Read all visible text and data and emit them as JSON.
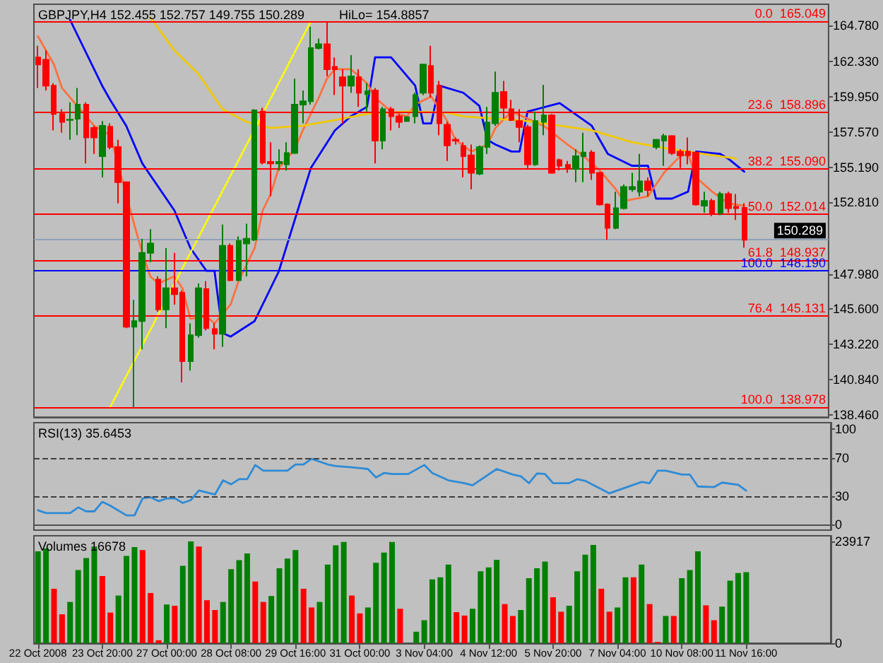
{
  "chart_data": [
    {
      "type": "candlestick",
      "title": "GBPJPY,H4 152.455 152.757 149.755 150.289",
      "annotations": [
        "HiLo= 154.8857"
      ],
      "categories": [
        null,
        null,
        null,
        null,
        null,
        null,
        null,
        null,
        null,
        null,
        null,
        null,
        null,
        null,
        null,
        null,
        null,
        null,
        null,
        null,
        null,
        null,
        null,
        null,
        null,
        null,
        null,
        null,
        null,
        null,
        null,
        null,
        null,
        null,
        null,
        null,
        null,
        null,
        null,
        null,
        null,
        null,
        null,
        null,
        null,
        null,
        null,
        null,
        null,
        null,
        null,
        null,
        null,
        null,
        null,
        null,
        null,
        null,
        null,
        null,
        null,
        null,
        null,
        null,
        null,
        null,
        null,
        null,
        null,
        null,
        null,
        null,
        null,
        null,
        null,
        null,
        null,
        null,
        null,
        null,
        null,
        null,
        null,
        null,
        null,
        null,
        null,
        null,
        null,
        null,
        null,
        null,
        null,
        null,
        null,
        null,
        null,
        null,
        null
      ],
      "ohlc": [
        [
          162.61,
          163.4,
          160.54,
          162.13
        ],
        [
          162.45,
          163.08,
          160.38,
          160.7
        ],
        [
          160.7,
          160.86,
          157.68,
          158.79
        ],
        [
          158.79,
          159.11,
          157.52,
          158.25
        ],
        [
          158.38,
          159.58,
          157.04,
          158.4
        ],
        [
          158.47,
          160.54,
          157.36,
          159.42
        ],
        [
          159.42,
          159.58,
          155.45,
          157.2
        ],
        [
          157.84,
          157.99,
          156.09,
          157.2
        ],
        [
          155.93,
          158.31,
          154.5,
          157.99
        ],
        [
          157.93,
          158.15,
          156.4,
          156.56
        ],
        [
          156.56,
          157.04,
          152.75,
          154.18
        ],
        [
          154.18,
          154.18,
          144.32,
          144.42
        ],
        [
          144.42,
          146.23,
          138.978,
          144.8
        ],
        [
          144.8,
          150.36,
          142.89,
          149.41
        ],
        [
          149.41,
          151.0,
          148.77,
          150.04
        ],
        [
          147.6,
          147.82,
          145.43,
          145.59
        ],
        [
          145.59,
          149.73,
          144.32,
          147.02
        ],
        [
          147.02,
          149.41,
          145.91,
          146.61
        ],
        [
          146.71,
          146.86,
          140.66,
          142.09
        ],
        [
          142.09,
          144.64,
          141.46,
          143.84
        ],
        [
          143.84,
          147.34,
          143.68,
          147.02
        ],
        [
          146.96,
          147.5,
          144.16,
          144.32
        ],
        [
          144.26,
          144.64,
          142.89,
          143.94
        ],
        [
          143.94,
          151.32,
          143.05,
          149.88
        ],
        [
          149.88,
          150.04,
          147.5,
          147.56
        ],
        [
          147.56,
          150.52,
          147.5,
          150.2
        ],
        [
          150.04,
          151.38,
          147.82,
          150.36
        ],
        [
          150.3,
          159.11,
          150.2,
          159.04
        ],
        [
          158.95,
          159.2,
          155.39,
          155.51
        ],
        [
          155.55,
          156.88,
          153.22,
          155.45
        ],
        [
          155.45,
          156.4,
          154.97,
          155.55
        ],
        [
          155.39,
          156.88,
          154.97,
          156.15
        ],
        [
          156.15,
          161.17,
          156.09,
          159.42
        ],
        [
          159.42,
          160.38,
          158.15,
          159.65
        ],
        [
          159.65,
          164.67,
          159.42,
          163.24
        ],
        [
          163.24,
          163.88,
          163.14,
          163.5
        ],
        [
          163.5,
          165.049,
          161.33,
          161.81
        ],
        [
          161.97,
          162.61,
          160.06,
          161.81
        ],
        [
          161.27,
          161.81,
          158.15,
          160.7
        ],
        [
          160.7,
          162.76,
          160.22,
          161.33
        ],
        [
          161.27,
          161.81,
          159.27,
          160.22
        ],
        [
          160.12,
          160.86,
          158.95,
          160.32
        ],
        [
          160.38,
          160.54,
          155.45,
          156.98
        ],
        [
          156.98,
          159.27,
          156.4,
          159.11
        ],
        [
          159.11,
          159.27,
          157.68,
          158.63
        ],
        [
          158.63,
          158.79,
          157.84,
          158.25
        ],
        [
          158.31,
          158.63,
          158.25,
          158.57
        ],
        [
          158.63,
          160.22,
          158.15,
          160.06
        ],
        [
          160.22,
          162.13,
          160.06,
          162.13
        ],
        [
          162.03,
          163.4,
          159.9,
          160.22
        ],
        [
          160.7,
          161.02,
          157.36,
          158.15
        ],
        [
          158.06,
          158.25,
          155.61,
          156.66
        ],
        [
          157.04,
          157.2,
          156.72,
          156.98
        ],
        [
          156.63,
          156.88,
          154.5,
          155.93
        ],
        [
          155.99,
          156.72,
          153.7,
          154.81
        ],
        [
          154.75,
          156.66,
          154.66,
          156.56
        ],
        [
          156.56,
          159.27,
          156.09,
          158.22
        ],
        [
          158.15,
          161.65,
          157.99,
          160.22
        ],
        [
          160.28,
          161.02,
          158.47,
          159.2
        ],
        [
          159.11,
          159.74,
          158.31,
          158.38
        ],
        [
          158.31,
          159.11,
          156.88,
          157.9
        ],
        [
          157.9,
          158.06,
          155.13,
          155.39
        ],
        [
          155.39,
          158.95,
          155.29,
          158.31
        ],
        [
          158.25,
          160.76,
          157.36,
          158.69
        ],
        [
          158.69,
          158.79,
          154.75,
          154.81
        ],
        [
          155.67,
          155.77,
          154.97,
          155.29
        ],
        [
          155.35,
          155.61,
          154.81,
          155.07
        ],
        [
          155.07,
          156.4,
          154.18,
          155.93
        ],
        [
          155.93,
          157.52,
          154.18,
          156.18
        ],
        [
          156.18,
          156.34,
          154.34,
          154.81
        ],
        [
          154.81,
          154.88,
          152.59,
          152.68
        ],
        [
          152.68,
          152.75,
          150.3,
          151.09
        ],
        [
          151.09,
          153.54,
          151.0,
          152.43
        ],
        [
          152.43,
          154.02,
          152.33,
          153.86
        ],
        [
          153.7,
          154.81,
          153.54,
          153.86
        ],
        [
          153.54,
          156.09,
          153.22,
          154.24
        ],
        [
          154.24,
          154.5,
          153.22,
          153.64
        ],
        [
          156.56,
          157.1,
          156.4,
          157.04
        ],
        [
          156.98,
          157.45,
          155.29,
          157.29
        ],
        [
          157.29,
          157.36,
          156.02,
          156.15
        ],
        [
          156.25,
          156.4,
          155.13,
          155.99
        ],
        [
          156.25,
          157.2,
          155.39,
          155.99
        ],
        [
          156.18,
          156.25,
          152.59,
          152.68
        ],
        [
          152.59,
          153.54,
          152.11,
          152.91
        ],
        [
          152.91,
          153.07,
          151.89,
          152.11
        ],
        [
          152.11,
          153.54,
          151.95,
          153.38
        ],
        [
          153.38,
          153.54,
          152.11,
          152.43
        ],
        [
          152.52,
          153.38,
          151.63,
          152.43
        ],
        [
          152.455,
          152.757,
          149.755,
          150.289
        ],
        null,
        null,
        null,
        null,
        null,
        null,
        null,
        null,
        null,
        null
      ],
      "colors": [
        "#ff0000",
        "#ff0000",
        "#ff0000",
        "#ff0000",
        "#008000",
        "#008000",
        "#ff0000",
        "#ff0000",
        "#008000",
        "#ff0000",
        "#ff0000",
        "#ff0000",
        "#008000",
        "#008000",
        "#008000",
        "#ff0000",
        "#008000",
        "#ff0000",
        "#ff0000",
        "#008000",
        "#008000",
        "#ff0000",
        "#ff0000",
        "#008000",
        "#ff0000",
        "#008000",
        "#008000",
        "#008000",
        "#ff0000",
        "#ff0000",
        "#008000",
        "#008000",
        "#008000",
        "#008000",
        "#008000",
        "#008000",
        "#ff0000",
        "#ff0000",
        "#ff0000",
        "#008000",
        "#ff0000",
        "#008000",
        "#ff0000",
        "#008000",
        "#ff0000",
        "#ff0000",
        "#008000",
        "#008000",
        "#008000",
        "#ff0000",
        "#ff0000",
        "#ff0000",
        "#ff0000",
        "#ff0000",
        "#ff0000",
        "#008000",
        "#008000",
        "#008000",
        "#ff0000",
        "#ff0000",
        "#ff0000",
        "#ff0000",
        "#008000",
        "#008000",
        "#ff0000",
        "#ff0000",
        "#ff0000",
        "#008000",
        "#008000",
        "#ff0000",
        "#ff0000",
        "#ff0000",
        "#008000",
        "#008000",
        "#008000",
        "#008000",
        "#ff0000",
        "#008000",
        "#008000",
        "#ff0000",
        "#ff0000",
        "#ff0000",
        "#ff0000",
        "#008000",
        "#ff0000",
        "#008000",
        "#ff0000",
        "#ff0000",
        "#ff0000",
        null,
        null,
        null,
        null,
        null,
        null,
        null,
        null,
        null,
        null
      ],
      "series": [
        {
          "type": "line",
          "color": "#0000ff",
          "values": [
            null,
            null,
            null,
            null,
            165.15,
            null,
            null,
            null,
            160.7,
            159.74,
            null,
            157.99,
            null,
            155.45,
            null,
            null,
            null,
            152.27,
            null,
            149.73,
            null,
            148.19,
            148.19,
            144.0,
            143.75,
            null,
            null,
            144.8,
            null,
            null,
            148.14,
            null,
            null,
            null,
            155.13,
            null,
            null,
            157.68,
            null,
            158.63,
            null,
            159.27,
            162.61,
            null,
            162.61,
            null,
            null,
            160.7,
            158.15,
            158.15,
            160.7,
            null,
            null,
            160.22,
            null,
            159.33,
            157.04,
            156.72,
            null,
            156.25,
            156.25,
            158.95,
            null,
            null,
            null,
            159.52,
            null,
            null,
            null,
            157.99,
            null,
            156.09,
            null,
            null,
            155.29,
            null,
            155.29,
            153.07,
            null,
            153.07,
            null,
            153.54,
            156.25,
            null,
            null,
            156.09,
            155.77,
            null,
            154.89,
            null,
            null,
            null,
            null,
            null,
            null,
            null,
            null,
            null,
            null
          ]
        },
        {
          "type": "line",
          "color": "#ff7040",
          "values": [
            164.04,
            null,
            162.13,
            160.54,
            null,
            159.27,
            null,
            157.99,
            null,
            157.36,
            null,
            null,
            151.32,
            149.41,
            147.82,
            147.34,
            null,
            147.82,
            147.02,
            144.96,
            null,
            145.12,
            144.64,
            null,
            145.91,
            147.5,
            null,
            149.73,
            152.27,
            153.38,
            155.13,
            null,
            156.4,
            157.68,
            null,
            159.9,
            161.17,
            161.81,
            null,
            161.81,
            null,
            160.86,
            159.9,
            null,
            158.95,
            null,
            158.63,
            159.43,
            null,
            159.97,
            null,
            158.31,
            157.04,
            null,
            156.25,
            null,
            156.72,
            157.84,
            null,
            158.95,
            null,
            158.47,
            null,
            157.99,
            null,
            null,
            156.72,
            null,
            155.93,
            null,
            154.97,
            null,
            153.7,
            152.91,
            null,
            null,
            153.22,
            null,
            154.81,
            null,
            155.93,
            156.09,
            154.5,
            null,
            153.54,
            null,
            152.75,
            null,
            152.59,
            null,
            null,
            null,
            null,
            null,
            null,
            null,
            null,
            null,
            null
          ]
        },
        {
          "type": "line",
          "color": "#f0c800",
          "values": [
            null,
            null,
            null,
            null,
            null,
            null,
            null,
            null,
            null,
            null,
            null,
            null,
            null,
            null,
            165.31,
            null,
            null,
            163.08,
            null,
            null,
            161.49,
            null,
            null,
            159.11,
            null,
            null,
            158.25,
            null,
            null,
            157.84,
            null,
            null,
            null,
            157.99,
            null,
            null,
            null,
            158.38,
            null,
            null,
            null,
            158.79,
            null,
            null,
            null,
            null,
            158.95,
            null,
            null,
            null,
            null,
            158.88,
            null,
            158.63,
            null,
            null,
            null,
            null,
            null,
            null,
            null,
            158.31,
            null,
            null,
            null,
            null,
            null,
            null,
            null,
            157.68,
            null,
            null,
            null,
            null,
            156.88,
            null,
            null,
            null,
            null,
            156.4,
            null,
            null,
            null,
            null,
            null,
            null,
            null,
            155.77,
            null,
            null,
            null,
            null,
            null,
            null,
            null,
            null,
            null,
            null,
            null
          ]
        },
        {
          "type": "line",
          "color": "#ffff00",
          "line_style": "dotted",
          "values": [
            null,
            null,
            null,
            null,
            null,
            null,
            null,
            null,
            null,
            138.978,
            null,
            null,
            null,
            null,
            null,
            null,
            null,
            null,
            null,
            null,
            null,
            null,
            null,
            null,
            null,
            null,
            null,
            null,
            null,
            null,
            null,
            null,
            null,
            null,
            165.049,
            null,
            null,
            null,
            null,
            null,
            null,
            null,
            null,
            null,
            null,
            null,
            null,
            null,
            null,
            null,
            null,
            null,
            null,
            null,
            null,
            null,
            null,
            null,
            null,
            null,
            null,
            null,
            null,
            null,
            null,
            null,
            null,
            null,
            null,
            null,
            null,
            null,
            null,
            null,
            null,
            null,
            null,
            null,
            null,
            null,
            null,
            null,
            null,
            null,
            null,
            null,
            null,
            null,
            null,
            null,
            null,
            null,
            null,
            null,
            null,
            null,
            null,
            null,
            null
          ]
        }
      ],
      "ref_lines": [
        {
          "axis": "y",
          "value": 165.049,
          "label": "0.0  165.049",
          "color": "#ff0000"
        },
        {
          "axis": "y",
          "value": 158.896,
          "label": "23.6  158.896",
          "color": "#ff0000"
        },
        {
          "axis": "y",
          "value": 155.09,
          "label": "38.2  155.090",
          "color": "#ff0000"
        },
        {
          "axis": "y",
          "value": 152.014,
          "label": "50.0  152.014",
          "color": "#ff0000"
        },
        {
          "axis": "y",
          "value": 150.289,
          "label": "150.289",
          "color": "#8ea0b8"
        },
        {
          "axis": "y",
          "value": 148.937,
          "label": "61.8  148.937",
          "color": "#ff0000"
        },
        {
          "axis": "y",
          "value": 148.19,
          "label": "100.0  148.190",
          "color": "#0000ff"
        },
        {
          "axis": "y",
          "value": 145.131,
          "label": "76.4  145.131",
          "color": "#ff0000"
        },
        {
          "axis": "y",
          "value": 138.978,
          "label": "100.0  138.978",
          "color": "#ff0000"
        }
      ],
      "ylim": [
        138.3,
        166.2
      ],
      "yticks": [
        {
          "value": 138.46,
          "label": "138.460"
        },
        {
          "value": 140.84,
          "label": "140.840"
        },
        {
          "value": 143.22,
          "label": "143.220"
        },
        {
          "value": 145.6,
          "label": "145.600"
        },
        {
          "value": 147.98,
          "label": "147.980"
        },
        {
          "value": 152.81,
          "label": "152.810"
        },
        {
          "value": 155.19,
          "label": "155.190"
        },
        {
          "value": 157.57,
          "label": "157.570"
        },
        {
          "value": 159.95,
          "label": "159.950"
        },
        {
          "value": 162.33,
          "label": "162.330"
        },
        {
          "value": 164.78,
          "label": "164.780"
        }
      ],
      "tick_labels": "y"
    },
    {
      "type": "line",
      "title": "RSI(13) 35.6453",
      "color": "#2e8bd6",
      "categories": [
        null,
        null,
        null,
        null,
        null,
        null,
        null,
        null,
        null,
        null,
        null,
        null,
        null,
        null,
        null,
        null,
        null,
        null,
        null,
        null,
        null,
        null,
        null,
        null,
        null,
        null,
        null,
        null,
        null,
        null,
        null,
        null,
        null,
        null,
        null,
        null,
        null,
        null,
        null,
        null,
        null,
        null,
        null,
        null,
        null,
        null,
        null,
        null,
        null,
        null,
        null,
        null,
        null,
        null,
        null,
        null,
        null,
        null,
        null,
        null,
        null,
        null,
        null,
        null,
        null,
        null,
        null,
        null,
        null,
        null,
        null,
        null,
        null,
        null,
        null,
        null,
        null,
        null,
        null,
        null,
        null,
        null,
        null,
        null,
        null,
        null,
        null,
        null,
        null,
        null,
        null,
        null,
        null,
        null,
        null,
        null,
        null,
        null,
        null
      ],
      "values": [
        14.9,
        11.9,
        null,
        null,
        11.9,
        17.9,
        13.7,
        13.7,
        23.8,
        19.6,
        null,
        9.5,
        9.5,
        27.4,
        28.6,
        24.4,
        27.4,
        27.4,
        22.6,
        25.6,
        35.7,
        null,
        31.5,
        46.4,
        42.2,
        47.6,
        47.6,
        62.5,
        56.5,
        null,
        null,
        56.5,
        63.1,
        63.1,
        69.0,
        null,
        63.1,
        61.3,
        null,
        60.1,
        null,
        58.3,
        49.4,
        54.1,
        53.0,
        null,
        53.0,
        null,
        62.5,
        54.1,
        null,
        46.4,
        null,
        43.4,
        41.1,
        null,
        null,
        58.3,
        null,
        52.4,
        50.6,
        43.4,
        53.6,
        53.0,
        43.4,
        null,
        43.4,
        47.6,
        45.8,
        null,
        null,
        32.7,
        null,
        38.7,
        null,
        44.6,
        43.4,
        56.5,
        56.5,
        null,
        52.4,
        52.4,
        39.9,
        null,
        39.3,
        44.0,
        null,
        41.7,
        35.6,
        null,
        null,
        null,
        null,
        null,
        null,
        null,
        null,
        null,
        null
      ],
      "ref_lines": [
        {
          "axis": "y",
          "value": 30,
          "color": "#404040",
          "line_style": "dashed"
        },
        {
          "axis": "y",
          "value": 70,
          "color": "#404040",
          "line_style": "dashed"
        }
      ],
      "ylim": [
        -6,
        107
      ],
      "yticks": [
        0,
        30,
        70,
        100
      ],
      "tick_labels": "y"
    },
    {
      "type": "bar",
      "title": "Volumes 16678",
      "categories": [
        "22 Oct 2008",
        null,
        null,
        null,
        null,
        null,
        null,
        null,
        "23 Oct 20:00",
        null,
        null,
        null,
        null,
        null,
        null,
        null,
        "27 Oct 00:00",
        null,
        null,
        null,
        null,
        null,
        null,
        null,
        "28 Oct 08:00",
        null,
        null,
        null,
        null,
        null,
        null,
        null,
        "29 Oct 16:00",
        null,
        null,
        null,
        null,
        null,
        null,
        null,
        "31 Oct 00:00",
        null,
        null,
        null,
        null,
        null,
        null,
        null,
        "3 Nov 04:00",
        null,
        null,
        null,
        null,
        null,
        null,
        null,
        "4 Nov 12:00",
        null,
        null,
        null,
        null,
        null,
        null,
        null,
        "5 Nov 20:00",
        null,
        null,
        null,
        null,
        null,
        null,
        null,
        "7 Nov 04:00",
        null,
        null,
        null,
        null,
        null,
        null,
        null,
        "10 Nov 08:00",
        null,
        null,
        null,
        null,
        null,
        null,
        null,
        "11 Nov 16:00",
        null,
        null,
        null,
        null,
        null,
        null,
        null,
        null,
        null,
        null
      ],
      "values": [
        21600,
        22300,
        12800,
        6800,
        9700,
        17200,
        20000,
        22700,
        15800,
        7200,
        11200,
        20500,
        22600,
        21900,
        11800,
        700,
        9100,
        8800,
        18200,
        23917,
        22700,
        10100,
        7800,
        9700,
        17400,
        19500,
        21100,
        14500,
        9700,
        11100,
        17600,
        19900,
        21900,
        12800,
        8400,
        9700,
        18500,
        23000,
        23800,
        11200,
        7000,
        8400,
        18900,
        21300,
        23800,
        8100,
        0,
        2700,
        5400,
        15000,
        15500,
        18500,
        7300,
        6500,
        8100,
        16900,
        17800,
        19600,
        9200,
        6400,
        7800,
        15300,
        17600,
        19200,
        10800,
        7400,
        8800,
        16900,
        20800,
        23100,
        12800,
        7400,
        8400,
        15500,
        15500,
        18500,
        9200,
        300,
        6400,
        6400,
        15300,
        17200,
        21600,
        8900,
        5400,
        8600,
        14700,
        16500,
        16678,
        null,
        null,
        null,
        null,
        null,
        null,
        null,
        null,
        null,
        null
      ],
      "colors": [
        "#008000",
        "#008000",
        "#ff0000",
        "#ff0000",
        "#008000",
        "#008000",
        "#008000",
        "#008000",
        "#ff0000",
        "#ff0000",
        "#008000",
        "#008000",
        "#008000",
        "#ff0000",
        "#ff0000",
        "#ff0000",
        "#008000",
        "#ff0000",
        "#008000",
        "#008000",
        "#ff0000",
        "#ff0000",
        "#ff0000",
        "#008000",
        "#008000",
        "#008000",
        "#008000",
        "#ff0000",
        "#ff0000",
        "#008000",
        "#008000",
        "#008000",
        "#008000",
        "#ff0000",
        "#ff0000",
        "#008000",
        "#008000",
        "#008000",
        "#008000",
        "#ff0000",
        "#ff0000",
        "#008000",
        "#008000",
        "#008000",
        "#008000",
        "#ff0000",
        "#ff0000",
        "#008000",
        "#008000",
        "#008000",
        "#008000",
        "#008000",
        "#ff0000",
        "#ff0000",
        "#008000",
        "#008000",
        "#008000",
        "#008000",
        "#ff0000",
        "#ff0000",
        "#008000",
        "#008000",
        "#008000",
        "#008000",
        "#ff0000",
        "#ff0000",
        "#008000",
        "#008000",
        "#008000",
        "#008000",
        "#ff0000",
        "#ff0000",
        "#008000",
        "#008000",
        "#ff0000",
        "#008000",
        "#ff0000",
        "#ff0000",
        "#008000",
        "#ff0000",
        "#008000",
        "#008000",
        "#008000",
        "#ff0000",
        "#ff0000",
        "#008000",
        "#008000",
        "#008000",
        "#008000",
        null,
        null,
        null,
        null,
        null,
        null,
        null,
        null,
        null,
        null
      ],
      "ylim": [
        0,
        25250
      ],
      "yticks": [
        0,
        23917
      ]
    }
  ]
}
